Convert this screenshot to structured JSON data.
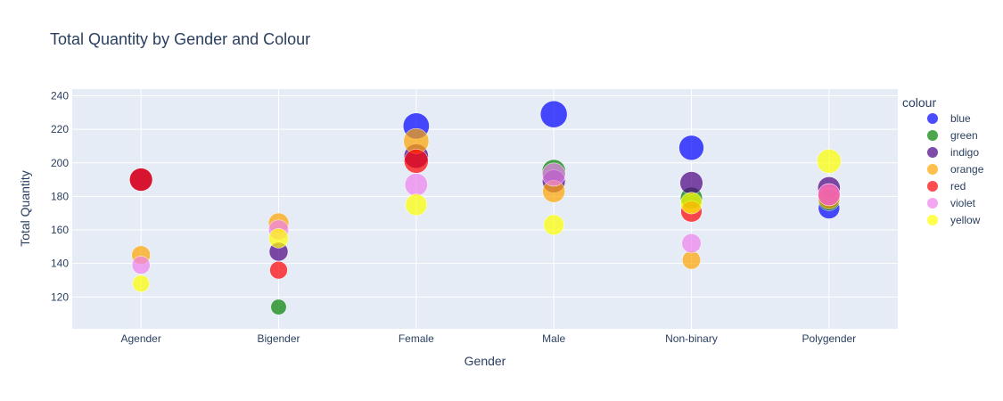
{
  "chart_data": {
    "type": "scatter",
    "title": "Total Quantity by Gender and Colour",
    "xlabel": "Gender",
    "ylabel": "Total Quantity",
    "categories": [
      "Agender",
      "Bigender",
      "Female",
      "Male",
      "Non-binary",
      "Polygender"
    ],
    "ylim": [
      101,
      244
    ],
    "yticks": [
      120,
      140,
      160,
      180,
      200,
      220,
      240
    ],
    "grid": true,
    "legend_title": "colour",
    "legend_position": "right",
    "series": [
      {
        "name": "blue",
        "color": "#0000ff",
        "points": [
          {
            "x": "Female",
            "y": 222
          },
          {
            "x": "Male",
            "y": 229
          },
          {
            "x": "Non-binary",
            "y": 209
          },
          {
            "x": "Polygender",
            "y": 173
          }
        ]
      },
      {
        "name": "green",
        "color": "#008000",
        "points": [
          {
            "x": "Bigender",
            "y": 114
          },
          {
            "x": "Male",
            "y": 195
          },
          {
            "x": "Non-binary",
            "y": 179
          },
          {
            "x": "Polygender",
            "y": 178
          }
        ]
      },
      {
        "name": "indigo",
        "color": "#4b0082",
        "points": [
          {
            "x": "Agender",
            "y": 190
          },
          {
            "x": "Bigender",
            "y": 147
          },
          {
            "x": "Female",
            "y": 204
          },
          {
            "x": "Male",
            "y": 189
          },
          {
            "x": "Non-binary",
            "y": 188
          },
          {
            "x": "Polygender",
            "y": 185
          }
        ]
      },
      {
        "name": "orange",
        "color": "#ffa500",
        "points": [
          {
            "x": "Agender",
            "y": 145
          },
          {
            "x": "Bigender",
            "y": 164
          },
          {
            "x": "Female",
            "y": 213
          },
          {
            "x": "Male",
            "y": 183
          },
          {
            "x": "Non-binary",
            "y": 142
          },
          {
            "x": "Polygender",
            "y": 179
          }
        ]
      },
      {
        "name": "red",
        "color": "#ff0000",
        "points": [
          {
            "x": "Agender",
            "y": 190
          },
          {
            "x": "Bigender",
            "y": 136
          },
          {
            "x": "Female",
            "y": 201
          },
          {
            "x": "Non-binary",
            "y": 171
          },
          {
            "x": "Polygender",
            "y": 181
          }
        ]
      },
      {
        "name": "violet",
        "color": "#ee82ee",
        "points": [
          {
            "x": "Agender",
            "y": 139
          },
          {
            "x": "Bigender",
            "y": 160
          },
          {
            "x": "Female",
            "y": 187
          },
          {
            "x": "Male",
            "y": 193
          },
          {
            "x": "Non-binary",
            "y": 152
          },
          {
            "x": "Polygender",
            "y": 181
          }
        ]
      },
      {
        "name": "yellow",
        "color": "#ffff00",
        "points": [
          {
            "x": "Agender",
            "y": 128
          },
          {
            "x": "Bigender",
            "y": 155
          },
          {
            "x": "Female",
            "y": 175
          },
          {
            "x": "Male",
            "y": 163
          },
          {
            "x": "Non-binary",
            "y": 176
          },
          {
            "x": "Polygender",
            "y": 201
          }
        ]
      }
    ]
  }
}
